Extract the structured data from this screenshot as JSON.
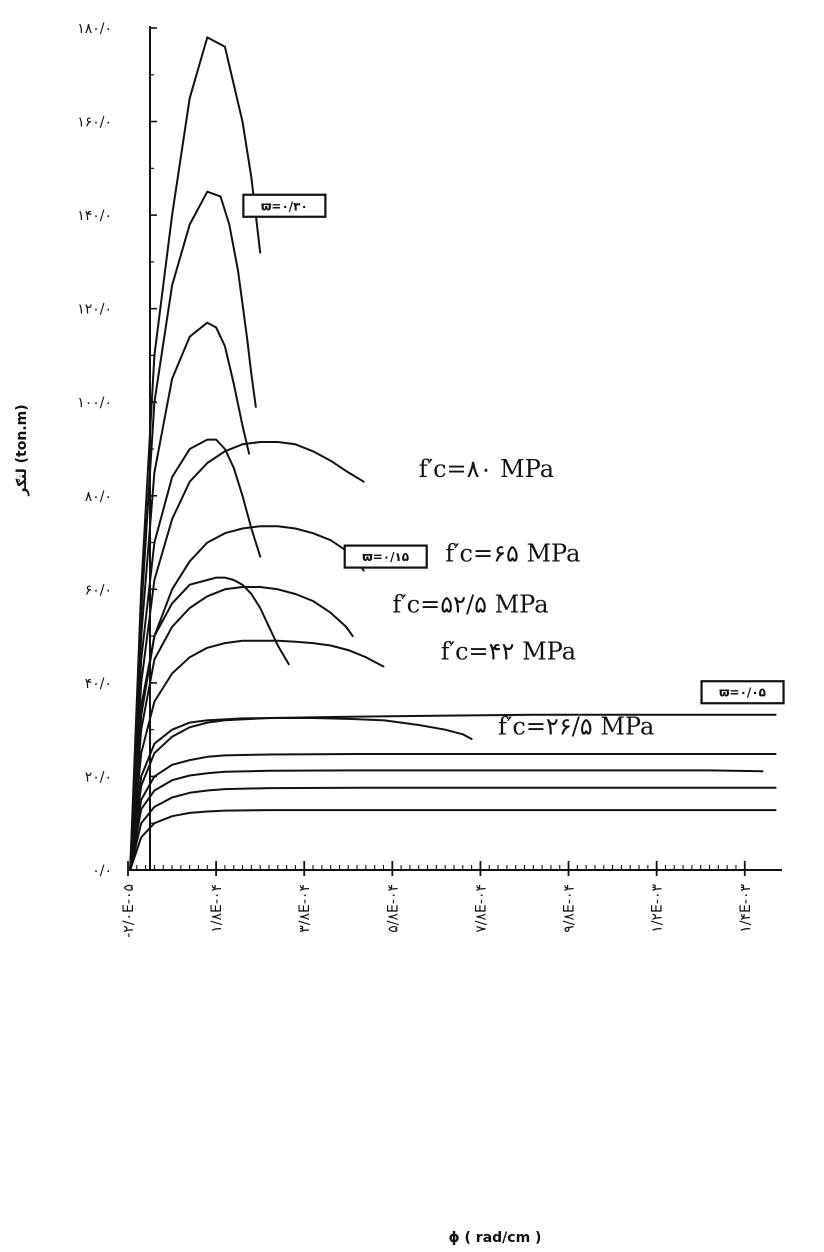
{
  "chart_data": {
    "type": "line",
    "title": "",
    "xlabel": "ϕ ( rad/cm )",
    "ylabel": "لنګر (ton.m)",
    "xlim": [
      -2e-05,
      0.00146
    ],
    "ylim": [
      0,
      180
    ],
    "x_ticks": [
      {
        "value": -2e-05,
        "label": "-۲/۰E-۰۵"
      },
      {
        "value": 0.00018,
        "label": "۱/۸E-۰۴"
      },
      {
        "value": 0.00038,
        "label": "۳/۸E-۰۴"
      },
      {
        "value": 0.00058,
        "label": "۵/۸E-۰۴"
      },
      {
        "value": 0.00078,
        "label": "۷/۸E-۰۴"
      },
      {
        "value": 0.00098,
        "label": "۹/۸E-۰۴"
      },
      {
        "value": 0.00118,
        "label": "۱/۲E-۰۳"
      },
      {
        "value": 0.00138,
        "label": "۱/۴E-۰۳"
      }
    ],
    "y_ticks": [
      {
        "value": 0,
        "label": "۰/۰"
      },
      {
        "value": 20,
        "label": "۲۰/۰"
      },
      {
        "value": 40,
        "label": "۴۰/۰"
      },
      {
        "value": 60,
        "label": "۶۰/۰"
      },
      {
        "value": 80,
        "label": "۸۰/۰"
      },
      {
        "value": 100,
        "label": "۱۰۰/۰"
      },
      {
        "value": 120,
        "label": "۱۲۰/۰"
      },
      {
        "value": 140,
        "label": "۱۴۰/۰"
      },
      {
        "value": 160,
        "label": "۱۶۰/۰"
      },
      {
        "value": 180,
        "label": "۱۸۰/۰"
      }
    ],
    "grid": false,
    "annotations": [
      {
        "text": "f′c=۸۰ MPa",
        "x": 0.00064,
        "y": 84
      },
      {
        "text": "f′c=۶۵ MPa",
        "x": 0.0007,
        "y": 66
      },
      {
        "text": "f′c=۵۲/۵ MPa",
        "x": 0.00058,
        "y": 55
      },
      {
        "text": "f′c=۴۲ MPa",
        "x": 0.00069,
        "y": 45
      },
      {
        "text": "f′c=۲۶/۵ MPa",
        "x": 0.00082,
        "y": 29
      }
    ],
    "boxed_labels": [
      {
        "text": "ϖ=۰/۳۰",
        "x": 0.000335,
        "y": 142
      },
      {
        "text": "ϖ=۰/۱۵",
        "x": 0.000565,
        "y": 67
      },
      {
        "text": "ϖ=۰/۰۵",
        "x": 0.001375,
        "y": 38
      }
    ],
    "series": [
      {
        "x": [
          -1.5e-05,
          1e-05,
          4e-05,
          8e-05,
          0.00012,
          0.00016,
          0.0002,
          0.00024,
          0.00026,
          0.00027,
          0.00028
        ],
        "y": [
          0,
          60,
          110,
          140,
          165,
          178,
          176,
          160,
          148,
          140,
          132
        ]
      },
      {
        "x": [
          -1.5e-05,
          1e-05,
          4e-05,
          8e-05,
          0.00012,
          0.00016,
          0.00019,
          0.00021,
          0.00023,
          0.00025,
          0.00026,
          0.00027
        ],
        "y": [
          0,
          55,
          100,
          125,
          138,
          145,
          144,
          138,
          128,
          114,
          106,
          99
        ]
      },
      {
        "x": [
          -1.5e-05,
          1e-05,
          4e-05,
          8e-05,
          0.00012,
          0.00016,
          0.00018,
          0.0002,
          0.00022,
          0.00024,
          0.000255
        ],
        "y": [
          0,
          50,
          85,
          105,
          114,
          117,
          116,
          112,
          104,
          95,
          89
        ]
      },
      {
        "x": [
          -1.5e-05,
          1e-05,
          4e-05,
          8e-05,
          0.00012,
          0.00016,
          0.00018,
          0.0002,
          0.00022,
          0.00024,
          0.00026,
          0.00028
        ],
        "y": [
          0,
          45,
          70,
          84,
          90,
          92,
          92,
          90,
          86,
          80,
          73,
          67
        ]
      },
      {
        "x": [
          -1.5e-05,
          1e-05,
          4e-05,
          8e-05,
          0.00012,
          0.00016,
          0.0002,
          0.00024,
          0.00028,
          0.00032,
          0.00036,
          0.0004,
          0.00044,
          0.00048,
          0.000515
        ],
        "y": [
          0,
          40,
          62,
          75,
          83,
          87,
          89.5,
          91,
          91.5,
          91.5,
          91,
          89.5,
          87.5,
          85,
          83
        ]
      },
      {
        "x": [
          -1.5e-05,
          1e-05,
          4e-05,
          8e-05,
          0.00012,
          0.00016,
          0.0002,
          0.00024,
          0.00028,
          0.00032,
          0.00036,
          0.0004,
          0.00044,
          0.00048,
          0.0005,
          0.000515
        ],
        "y": [
          0,
          33,
          50,
          60,
          66,
          70,
          72,
          73,
          73.5,
          73.5,
          73,
          72,
          70.5,
          68,
          66,
          64
        ]
      },
      {
        "x": [
          -1.5e-05,
          1e-05,
          4e-05,
          8e-05,
          0.00012,
          0.00016,
          0.00018,
          0.0002,
          0.00022,
          0.00024,
          0.00026,
          0.00028,
          0.0003,
          0.00032,
          0.000345
        ],
        "y": [
          0,
          35,
          50,
          57,
          61,
          62,
          62.5,
          62.5,
          62,
          61,
          59,
          56,
          52,
          48,
          44
        ]
      },
      {
        "x": [
          -1.5e-05,
          1e-05,
          4e-05,
          8e-05,
          0.00012,
          0.00016,
          0.0002,
          0.00024,
          0.00028,
          0.00032,
          0.00036,
          0.0004,
          0.00044,
          0.000475,
          0.00049
        ],
        "y": [
          0,
          30,
          45,
          52,
          56,
          58.5,
          60,
          60.5,
          60.5,
          60,
          59,
          57.5,
          55,
          52,
          50
        ]
      },
      {
        "x": [
          -1.5e-05,
          1e-05,
          4e-05,
          8e-05,
          0.00012,
          0.00016,
          0.0002,
          0.00024,
          0.00028,
          0.00032,
          0.00036,
          0.0004,
          0.00044,
          0.00048,
          0.00052,
          0.00056
        ],
        "y": [
          0,
          25,
          36,
          42,
          45.5,
          47.5,
          48.5,
          49,
          49,
          49,
          48.8,
          48.5,
          48,
          47,
          45.5,
          43.5
        ]
      },
      {
        "x": [
          -1.5e-05,
          1e-05,
          4e-05,
          8e-05,
          0.00012,
          0.00016,
          0.0002,
          0.00024,
          0.00032,
          0.0004,
          0.00048,
          0.00056,
          0.00064,
          0.0007,
          0.00074,
          0.00076
        ],
        "y": [
          0,
          20,
          27,
          30,
          31.5,
          32,
          32.2,
          32.4,
          32.5,
          32.5,
          32.3,
          32,
          31,
          30,
          29,
          28
        ]
      },
      {
        "x": [
          -1.5e-05,
          1e-05,
          4e-05,
          8e-05,
          0.00012,
          0.00016,
          0.0002,
          0.0003,
          0.0005,
          0.0007,
          0.0009,
          0.0011,
          0.0013,
          0.00145
        ],
        "y": [
          0,
          18,
          25,
          28.5,
          30.5,
          31.5,
          32,
          32.5,
          32.8,
          33,
          33.2,
          33.2,
          33.2,
          33.2
        ]
      },
      {
        "x": [
          -1.5e-05,
          1e-05,
          4e-05,
          8e-05,
          0.00012,
          0.00016,
          0.0002,
          0.0003,
          0.0005,
          0.0007,
          0.0009,
          0.0011,
          0.0013,
          0.00145
        ],
        "y": [
          0,
          15,
          20,
          22.5,
          23.5,
          24.2,
          24.5,
          24.7,
          24.8,
          24.8,
          24.8,
          24.8,
          24.8,
          24.8
        ]
      },
      {
        "x": [
          -1.5e-05,
          1e-05,
          4e-05,
          8e-05,
          0.00012,
          0.00016,
          0.0002,
          0.0003,
          0.0005,
          0.0007,
          0.0009,
          0.0011,
          0.0013,
          0.00142
        ],
        "y": [
          0,
          13,
          17,
          19.2,
          20.2,
          20.7,
          21,
          21.2,
          21.3,
          21.3,
          21.3,
          21.3,
          21.3,
          21.1
        ]
      },
      {
        "x": [
          -1.5e-05,
          1e-05,
          4e-05,
          8e-05,
          0.00012,
          0.00016,
          0.0002,
          0.0003,
          0.0005,
          0.0007,
          0.0009,
          0.0011,
          0.0013,
          0.00145
        ],
        "y": [
          0,
          10,
          13.5,
          15.5,
          16.5,
          17,
          17.3,
          17.5,
          17.6,
          17.6,
          17.6,
          17.6,
          17.6,
          17.6
        ]
      },
      {
        "x": [
          -1.5e-05,
          1e-05,
          4e-05,
          8e-05,
          0.00012,
          0.00016,
          0.0002,
          0.0003,
          0.0005,
          0.0007,
          0.0009,
          0.0011,
          0.0013,
          0.00145
        ],
        "y": [
          0,
          7,
          10,
          11.5,
          12.2,
          12.5,
          12.7,
          12.8,
          12.8,
          12.8,
          12.8,
          12.8,
          12.8,
          12.8
        ]
      }
    ]
  }
}
